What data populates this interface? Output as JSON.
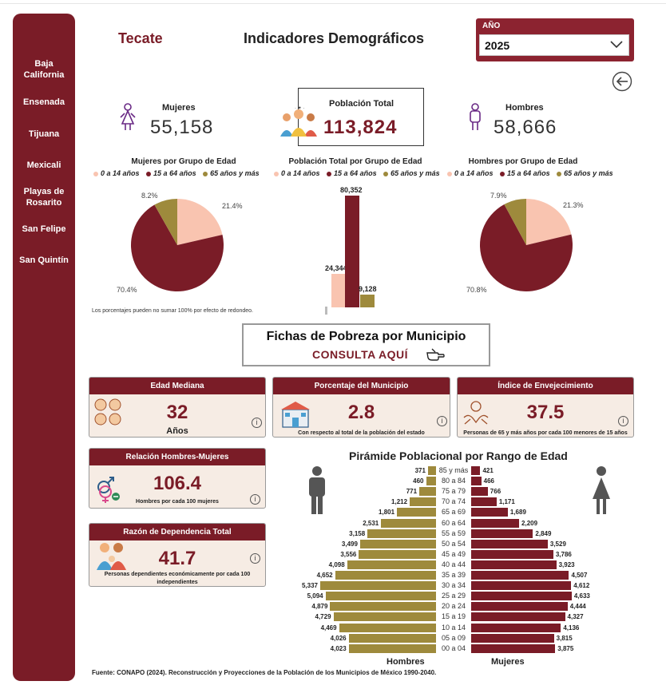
{
  "header": {
    "municipality": "Tecate",
    "title": "Indicadores Demográficos",
    "year_label": "AÑO",
    "year_value": "2025"
  },
  "sidebar": {
    "items": [
      {
        "label": "Baja\nCalifornia"
      },
      {
        "label": "Ensenada"
      },
      {
        "label": "Tijuana"
      },
      {
        "label": "Mexicali"
      },
      {
        "label": "Playas de\nRosarito"
      },
      {
        "label": "San Felipe"
      },
      {
        "label": "San Quintín"
      }
    ]
  },
  "kpis": {
    "women_label": "Mujeres",
    "women_value": "55,158",
    "total_label": "Población Total",
    "total_value": "113,824",
    "men_label": "Hombres",
    "men_value": "58,666"
  },
  "colors": {
    "maroon": "#7a1c27",
    "pink": "#f9c4b0",
    "gold": "#9e8a3c",
    "card_bg": "#f6ece4"
  },
  "legend": {
    "items": [
      "0 a 14 años",
      "15 a 64 años",
      "65 años y más"
    ]
  },
  "chart_data": [
    {
      "type": "pie",
      "title": "Mujeres por Grupo de Edad",
      "categories": [
        "0 a 14 años",
        "15 a 64 años",
        "65 años y más"
      ],
      "values": [
        21.4,
        70.4,
        8.2
      ],
      "labels": [
        "21.4%",
        "70.4%",
        "8.2%"
      ]
    },
    {
      "type": "bar",
      "title": "Población Total por Grupo de Edad",
      "categories": [
        "0 a 14 años",
        "15 a 64 años",
        "65 años y más"
      ],
      "values": [
        24344,
        80352,
        9128
      ],
      "labels": [
        "24,344",
        "80,352",
        "9,128"
      ],
      "ylim": [
        0,
        80352
      ]
    },
    {
      "type": "pie",
      "title": "Hombres por Grupo de Edad",
      "categories": [
        "0 a 14 años",
        "15 a 64 años",
        "65 años y más"
      ],
      "values": [
        21.3,
        70.8,
        7.9
      ],
      "labels": [
        "21.3%",
        "70.8%",
        "7.9%"
      ]
    },
    {
      "type": "bar",
      "title": "Pirámide Poblacional por Rango de Edad",
      "categories": [
        "85 y más",
        "80 a 84",
        "75 a 79",
        "70 a 74",
        "65 a 69",
        "60 a 64",
        "55 a 59",
        "50 a 54",
        "45 a 49",
        "40 a 44",
        "35 a 39",
        "30 a 34",
        "25 a 29",
        "20 a 24",
        "15 a 19",
        "10 a 14",
        "05 a 09",
        "00 a 04"
      ],
      "series": [
        {
          "name": "Hombres",
          "values": [
            371,
            460,
            771,
            1212,
            1801,
            2531,
            3158,
            3499,
            3556,
            4098,
            4652,
            5337,
            5094,
            4879,
            4729,
            4469,
            4026,
            4023
          ]
        },
        {
          "name": "Mujeres",
          "values": [
            421,
            466,
            766,
            1171,
            1689,
            2209,
            2849,
            3529,
            3786,
            3923,
            4507,
            4612,
            4633,
            4444,
            4327,
            4136,
            3815,
            3875
          ]
        }
      ]
    }
  ],
  "pie_note": "Los porcentajes pueden no sumar 100% por efecto de redondeo.",
  "fichas": {
    "title": "Fichas de Pobreza por Municipio",
    "cta": "CONSULTA AQUÍ"
  },
  "cards": {
    "median_age": {
      "title": "Edad Mediana",
      "value": "32",
      "sub": "Años"
    },
    "pct_municipio": {
      "title": "Porcentaje del Municipio",
      "value": "2.8",
      "sub": "Con respecto al total de la población del estado"
    },
    "aging_index": {
      "title": "Índice de Envejecimiento",
      "value": "37.5",
      "sub": "Personas  de 65 y más años por cada 100 menores de 15 años"
    },
    "sex_ratio": {
      "title": "Relación Hombres-Mujeres",
      "value": "106.4",
      "sub": "Hombres por cada 100 mujeres"
    },
    "dependency": {
      "title": "Razón de Dependencia Total",
      "value": "41.7",
      "sub": "Personas dependientes económicamente por cada 100 independientes"
    },
    "info_glyph": "i"
  },
  "pyramid_labels": {
    "men": "Hombres",
    "women": "Mujeres"
  },
  "source": "Fuente: CONAPO (2024). Reconstrucción y Proyecciones de la Población de los Municipios de México 1990-2040."
}
